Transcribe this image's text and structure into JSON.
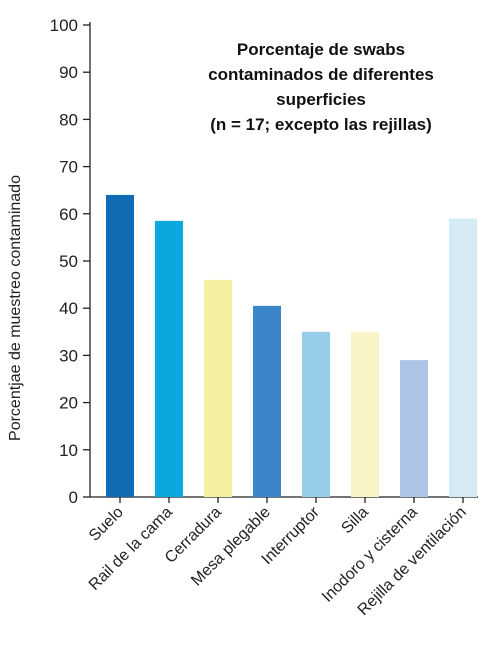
{
  "chart_data": {
    "type": "bar",
    "title_lines": [
      "Porcentaje de swabs",
      "contaminados de diferentes",
      "superficies",
      "(n = 17; excepto las rejillas)"
    ],
    "ylabel": "Porcentjae de muestreo contaminado",
    "xlabel": "",
    "ylim": [
      0,
      100
    ],
    "yticks": [
      0,
      10,
      20,
      30,
      40,
      50,
      60,
      70,
      80,
      90,
      100
    ],
    "grid": false,
    "categories": [
      "Suelo",
      "Rail de la cama",
      "Cerradura",
      "Mesa plegable",
      "Interruptor",
      "Silla",
      "Inodoro y cisterna",
      "Rejilla de ventilación"
    ],
    "values": [
      64,
      58.5,
      46,
      40.5,
      35,
      35,
      29,
      59
    ],
    "colors": [
      "#0e6bb4",
      "#0aa8df",
      "#f5f0a0",
      "#3b86c8",
      "#98cdea",
      "#f8f4c8",
      "#aec4e6",
      "#d6eaf5"
    ]
  }
}
